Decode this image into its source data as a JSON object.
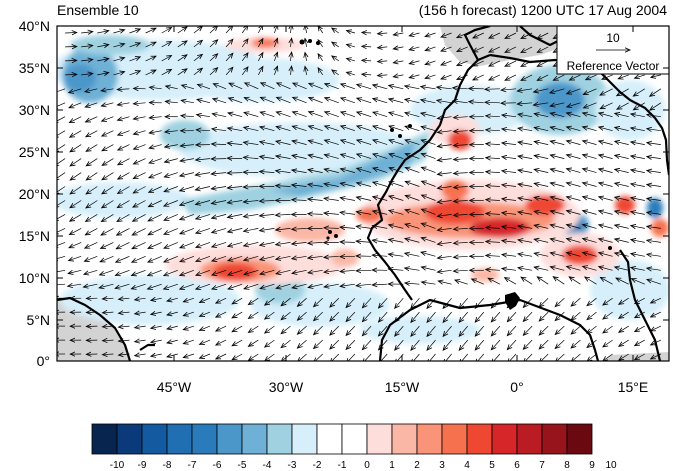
{
  "header": {
    "ensemble_label": "Ensemble 10",
    "forecast_label": "(156 h forecast) 1200 UTC 17 Aug 2004"
  },
  "map": {
    "lat_ticks": [
      "40°N",
      "35°N",
      "30°N",
      "25°N",
      "20°N",
      "15°N",
      "10°N",
      "5°N",
      "0°"
    ],
    "lon_ticks": [
      "45°W",
      "30°W",
      "15°W",
      "0°",
      "15°E"
    ],
    "reference_vector": {
      "magnitude": "10",
      "label": "Reference Vector"
    }
  },
  "colorbar": {
    "labels": [
      "-10",
      "-9",
      "-8",
      "-7",
      "-6",
      "-5",
      "-4",
      "-3",
      "-2",
      "-1",
      "0",
      "1",
      "2",
      "3",
      "4",
      "5",
      "6",
      "7",
      "8",
      "9",
      "10"
    ],
    "colors": [
      "#08254f",
      "#0b3a7a",
      "#135aa0",
      "#1f6fb2",
      "#2a7bbb",
      "#4b97ca",
      "#6eb0d6",
      "#9fd1e1",
      "#d6effa",
      "#ffffff",
      "#ffffff",
      "#fddedb",
      "#fbb7a6",
      "#f99478",
      "#f6724f",
      "#ee4732",
      "#d7262a",
      "#bb1b22",
      "#98141d",
      "#6a0a10"
    ]
  }
}
